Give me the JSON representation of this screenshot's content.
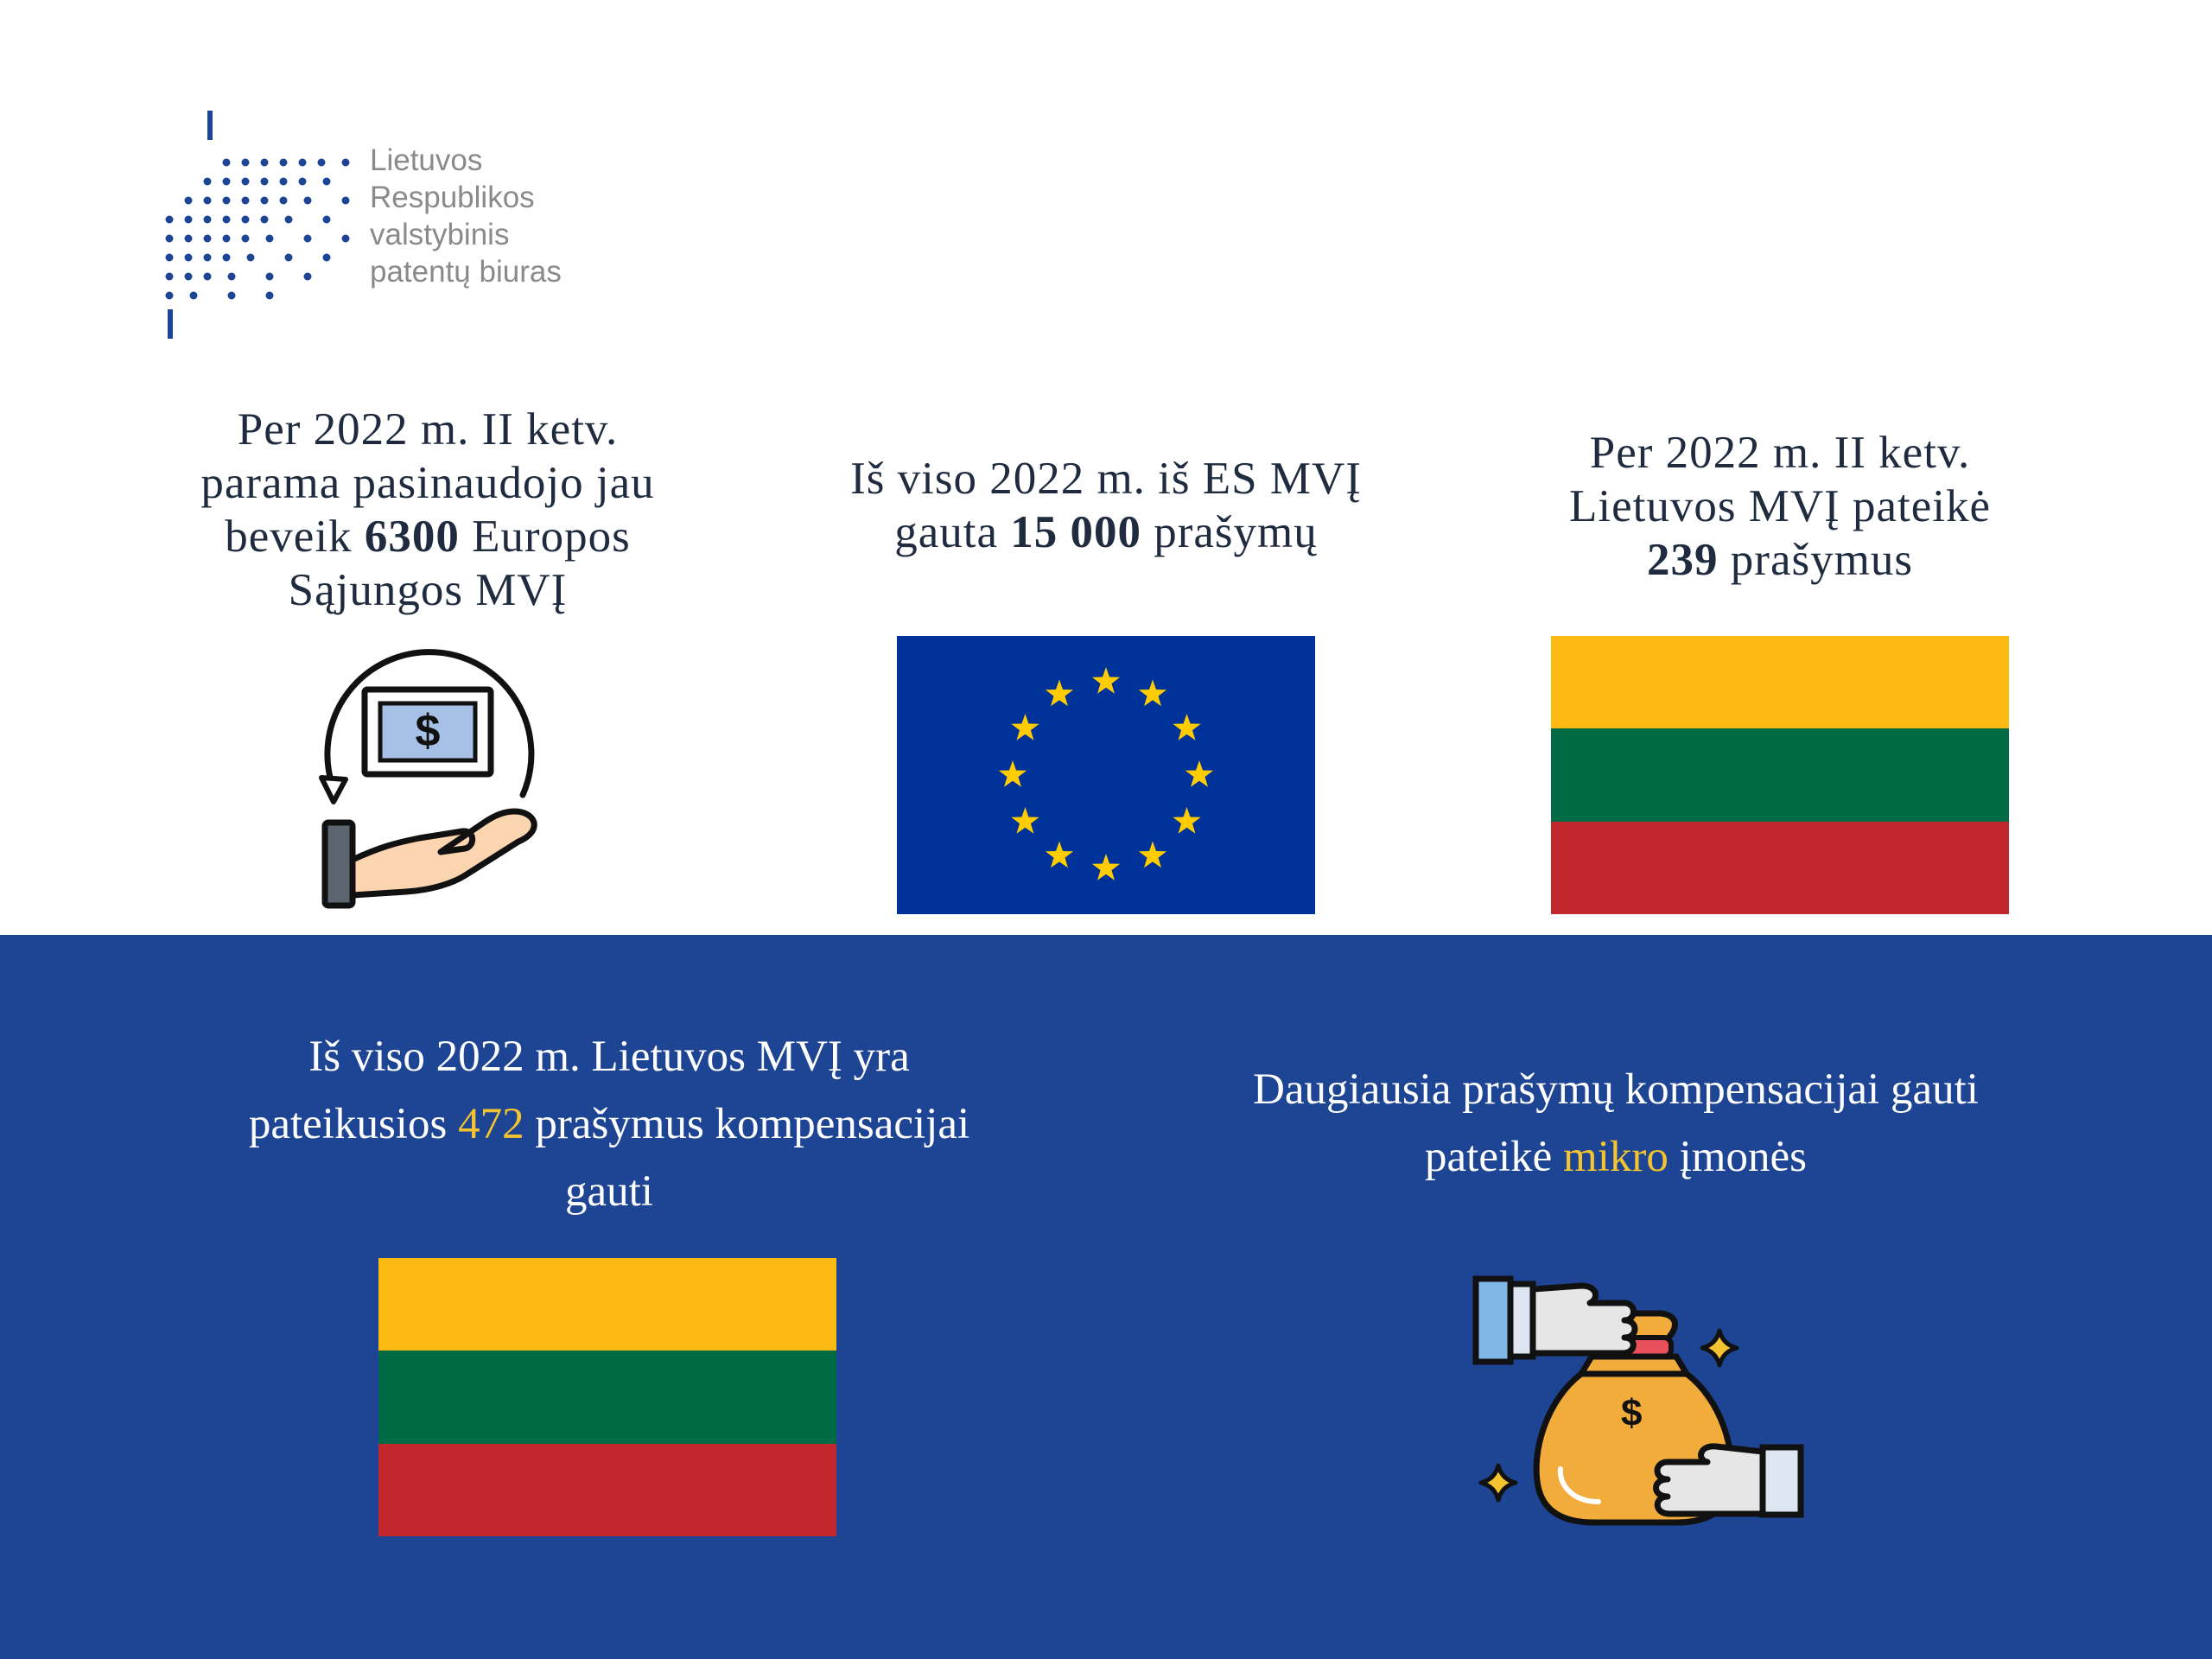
{
  "logo": {
    "lines": [
      "Lietuvos",
      "Respublikos",
      "valstybinis",
      "patentų biuras"
    ]
  },
  "top": {
    "stat1": {
      "line1": "Per 2022 m. II ketv.",
      "line2": "parama pasinaudojo jau",
      "line3_pre": "beveik ",
      "line3_value": "6300",
      "line3_post": " Europos",
      "line4": "Sąjungos MVĮ"
    },
    "stat2": {
      "line1": "Iš viso 2022 m. iš ES MVĮ",
      "line2_pre": "gauta ",
      "line2_value": "15 000",
      "line2_post": " prašymų"
    },
    "stat3": {
      "line1": "Per 2022 m. II ketv.",
      "line2": "Lietuvos MVĮ pateikė",
      "line3_value": "239",
      "line3_post": " prašymus"
    }
  },
  "bottom": {
    "stat1": {
      "line1": "Iš viso 2022 m. Lietuvos MVĮ yra",
      "line2_pre": "pateikusios ",
      "line2_value": "472",
      "line2_post": " prašymus kompensacijai",
      "line3": "gauti"
    },
    "stat2": {
      "line1": "Daugiausia prašymų kompensacijai gauti",
      "line2_pre": "pateikė ",
      "line2_value": "mikro",
      "line2_post": " įmonės"
    }
  },
  "icons": {
    "money": "money-return-hand-icon",
    "bag": "money-bag-exchange-icon",
    "eu_flag": "eu-flag-icon",
    "lt_flag": "lithuania-flag-icon"
  },
  "colors": {
    "brand_blue": "#1e4494",
    "highlight": "#f4c430",
    "eu_blue": "#003399",
    "eu_star": "#ffcc00",
    "lt_yellow": "#fdb913",
    "lt_green": "#006a44",
    "lt_red": "#c1272d"
  }
}
